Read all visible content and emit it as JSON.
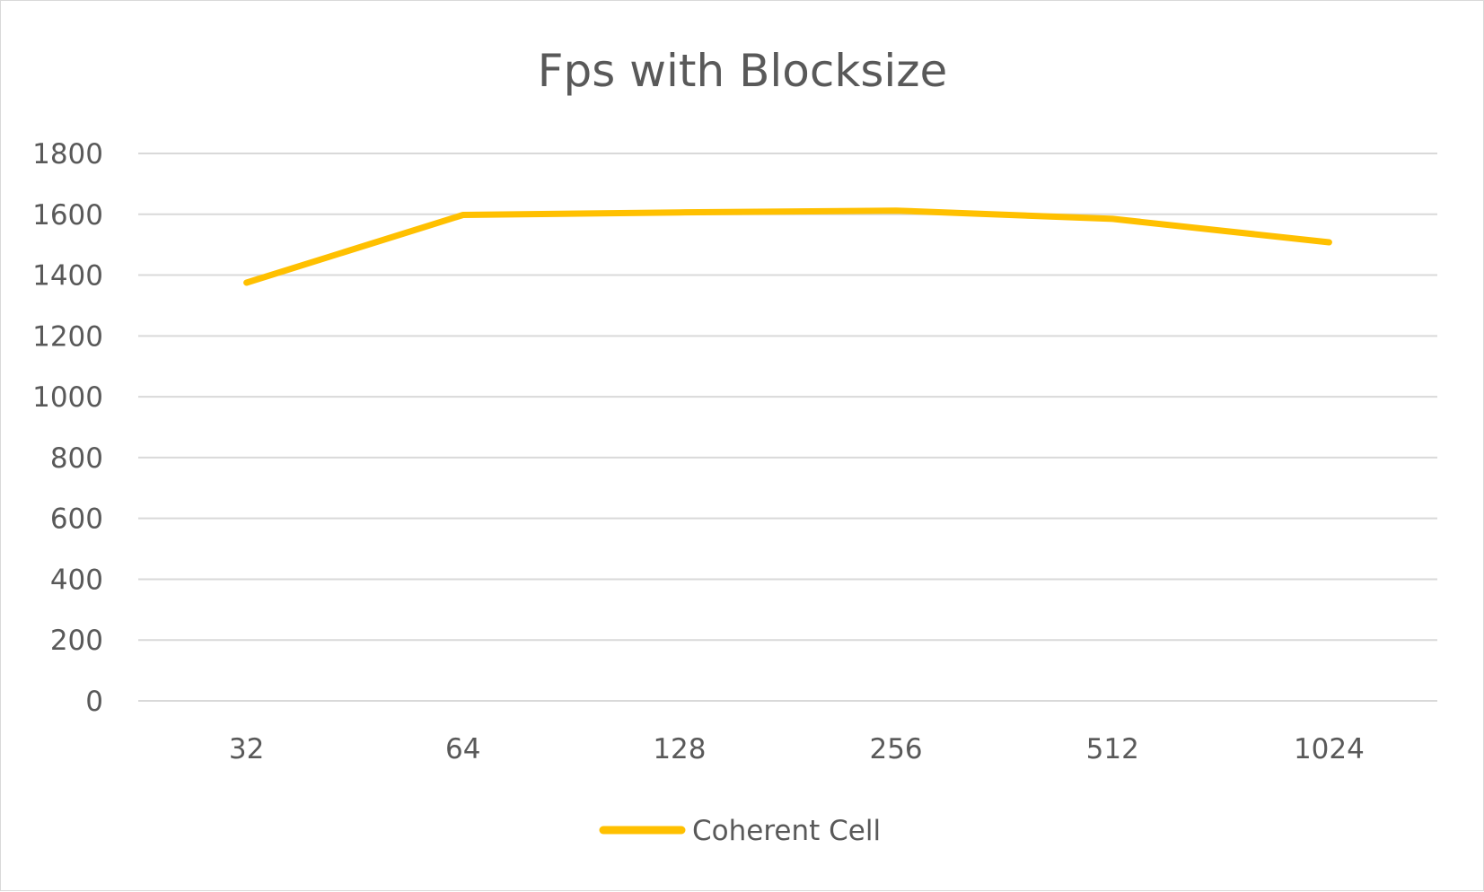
{
  "chart_data": {
    "type": "line",
    "title": "Fps with Blocksize",
    "xlabel": "",
    "ylabel": "",
    "categories": [
      "32",
      "64",
      "128",
      "256",
      "512",
      "1024"
    ],
    "series": [
      {
        "name": "Coherent Cell",
        "values": [
          1375,
          1598,
          1606,
          1612,
          1585,
          1508
        ],
        "color": "#FFC000"
      }
    ],
    "ylim": [
      0,
      1800
    ],
    "yticks": [
      "0",
      "200",
      "400",
      "600",
      "800",
      "1000",
      "1200",
      "1400",
      "1600",
      "1800"
    ],
    "grid": true,
    "legend": "bottom",
    "colors": {
      "grid": "#d9d9d9",
      "text": "#595959",
      "border": "#d9d9d9"
    }
  }
}
